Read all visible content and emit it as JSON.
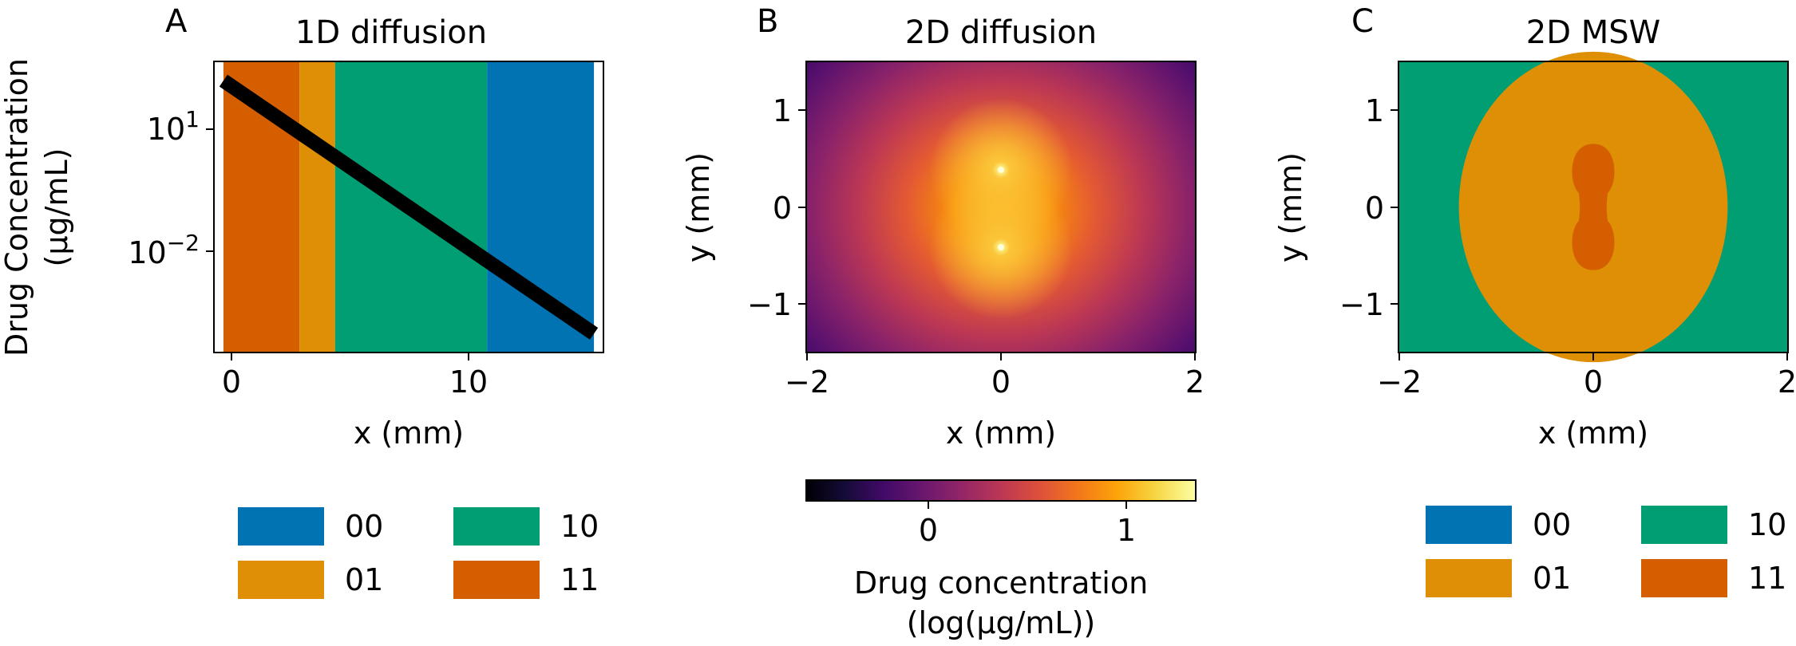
{
  "colors": {
    "state_00": "#0173b2",
    "state_01": "#de8f05",
    "state_10": "#029e73",
    "state_11": "#d55e00",
    "line": "#000000",
    "colormap": "inferno"
  },
  "chart_data": [
    {
      "type": "line",
      "panel": "A",
      "title": "1D diffusion",
      "xlabel": "x (mm)",
      "ylabel": [
        "Drug Concentration",
        "(μg/mL)"
      ],
      "xlim": [
        -0.8,
        15.6
      ],
      "ylim": [
        3.4e-05,
        600
      ],
      "yscale": "log",
      "xticks": [
        0,
        10
      ],
      "xtick_labels": [
        "0",
        "10"
      ],
      "yticks": [
        10,
        0.01
      ],
      "ytick_labels": [
        {
          "base": "10",
          "exp": "1"
        },
        {
          "base": "10",
          "exp": "−2"
        }
      ],
      "background_bands": [
        {
          "state": "11",
          "x0": -0.4,
          "x1": 2.8
        },
        {
          "state": "01",
          "x0": 2.8,
          "x1": 4.3
        },
        {
          "state": "10",
          "x0": 4.3,
          "x1": 10.7
        },
        {
          "state": "00",
          "x0": 10.7,
          "x1": 15.2
        }
      ],
      "series": [
        {
          "x": [
            -0.4,
            15.2
          ],
          "y": [
            200,
            0.0001
          ]
        }
      ]
    },
    {
      "type": "heatmap",
      "panel": "B",
      "title": "2D diffusion",
      "xlabel": "x (mm)",
      "ylabel": "y (mm)",
      "xlim": [
        -2,
        2
      ],
      "ylim": [
        -1.5,
        1.5
      ],
      "xticks": [
        -2,
        0,
        2
      ],
      "xtick_labels": [
        "−2",
        "0",
        "2"
      ],
      "yticks": [
        1,
        0,
        -1
      ],
      "ytick_labels": [
        "1",
        "0",
        "−1"
      ],
      "sources": [
        {
          "x": 0,
          "y": 0.4
        },
        {
          "x": 0,
          "y": -0.4
        }
      ],
      "colorbar": {
        "cmap": "inferno",
        "range": [
          -0.6,
          1.35
        ],
        "ticks": [
          0,
          1
        ],
        "tick_labels": [
          "0",
          "1"
        ],
        "label": [
          "Drug concentration",
          "(log(μg/mL))"
        ]
      }
    },
    {
      "type": "heatmap",
      "panel": "C",
      "title": "2D MSW",
      "xlabel": "x (mm)",
      "ylabel": "y (mm)",
      "xlim": [
        -2,
        2
      ],
      "ylim": [
        -1.5,
        1.5
      ],
      "xticks": [
        -2,
        0,
        2
      ],
      "xtick_labels": [
        "−2",
        "0",
        "2"
      ],
      "yticks": [
        1,
        0,
        -1
      ],
      "ytick_labels": [
        "1",
        "0",
        "−1"
      ],
      "regions": [
        {
          "state": "10",
          "shape": "background"
        },
        {
          "state": "01",
          "shape": "ellipse",
          "cx": 0,
          "cy": 0,
          "rx": 1.38,
          "ry": 1.6
        },
        {
          "state": "11",
          "shape": "peanut",
          "cx": 0,
          "cy": 0,
          "half_height": 0.65,
          "radius": 0.24
        }
      ]
    }
  ],
  "legend": {
    "items": [
      {
        "label": "00",
        "state": "state_00"
      },
      {
        "label": "10",
        "state": "state_10"
      },
      {
        "label": "01",
        "state": "state_01"
      },
      {
        "label": "11",
        "state": "state_11"
      }
    ]
  }
}
